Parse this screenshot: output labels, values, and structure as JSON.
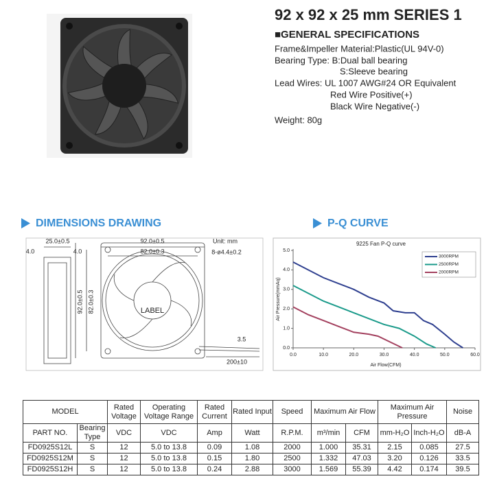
{
  "header": {
    "title": "92 x 92 x 25 mm SERIES 1"
  },
  "specs": {
    "heading": "■GENERAL SPECIFICATIONS",
    "lines": [
      "Frame&Impeller Material:Plastic(UL 94V-0)",
      "Bearing Type:  B:Dual ball bearing",
      "S:Sleeve bearing",
      "Lead Wires: UL 1007 AWG#24 OR Equivalent",
      "Red Wire Positive(+)",
      "Black Wire Negative(-)",
      "Weight: 80g"
    ]
  },
  "sections": {
    "dimensions": "DIMENSIONS DRAWING",
    "pq": "P-Q CURVE"
  },
  "drawing": {
    "unit": "Unit: mm",
    "depth": "25.0±0.5",
    "rim_left": "4.0",
    "rim_right": "4.0",
    "width": "92.0±0.5",
    "hole_pitch": "82.0±0.3",
    "holes": "8-ø4.4±0.2",
    "height": "92.0±0.5",
    "hole_pitch_v": "82.0±0.3",
    "label": "LABEL",
    "wire_dia": "3.5",
    "wire_len": "200±10"
  },
  "chart_data": {
    "type": "line",
    "title": "9225 Fan P-Q curve",
    "x_label": "Air Flow(CFM)",
    "y_label": "Air Pressure(mmAq)",
    "xlim": [
      0,
      60
    ],
    "xticks": [
      {
        "value": 0,
        "label": "0.0"
      },
      {
        "value": 10,
        "label": "10.0"
      },
      {
        "value": 20,
        "label": "20.0"
      },
      {
        "value": 30,
        "label": "30.0"
      },
      {
        "value": 40,
        "label": "40.0"
      },
      {
        "value": 50,
        "label": "50.0"
      },
      {
        "value": 60,
        "label": "60.0"
      }
    ],
    "ylim": [
      0,
      5
    ],
    "yticks": [
      {
        "value": 0,
        "label": "0.0"
      },
      {
        "value": 1,
        "label": "1.0"
      },
      {
        "value": 2,
        "label": "2.0"
      },
      {
        "value": 3,
        "label": "3.0"
      },
      {
        "value": 4,
        "label": "4.0"
      },
      {
        "value": 5,
        "label": "5.0"
      }
    ],
    "legend": "upper right",
    "series": [
      {
        "name": "3000RPM",
        "color": "#2e3f8f",
        "x": [
          0,
          5,
          10,
          15,
          20,
          25,
          30,
          33,
          37,
          40,
          43,
          46,
          50,
          53,
          56
        ],
        "values": [
          4.4,
          4.0,
          3.6,
          3.3,
          3.0,
          2.6,
          2.3,
          1.9,
          1.8,
          1.8,
          1.4,
          1.2,
          0.7,
          0.3,
          0
        ]
      },
      {
        "name": "2500RPM",
        "color": "#1a9a8a",
        "x": [
          0,
          5,
          10,
          15,
          20,
          25,
          30,
          35,
          40,
          44,
          47
        ],
        "values": [
          3.2,
          2.8,
          2.4,
          2.1,
          1.8,
          1.5,
          1.2,
          1.0,
          0.6,
          0.2,
          0
        ]
      },
      {
        "name": "2000RPM",
        "color": "#a3405e",
        "x": [
          0,
          5,
          10,
          15,
          20,
          25,
          28,
          32,
          36
        ],
        "values": [
          2.1,
          1.7,
          1.4,
          1.1,
          0.8,
          0.7,
          0.6,
          0.3,
          0
        ]
      }
    ]
  },
  "table": {
    "header_rows": [
      [
        "MODEL",
        "Rated Voltage",
        "Operating Voltage Range",
        "Rated Current",
        "Rated Input",
        "Speed",
        "Maximum Air Flow",
        "Maximum Air Pressure",
        "Noise"
      ],
      [
        "PART NO.",
        "Bearing Type",
        "VDC",
        "VDC",
        "Amp",
        "Watt",
        "R.P.M.",
        "m³/min",
        "CFM",
        "mm-H₂O",
        "Inch-H₂O",
        "dB-A"
      ]
    ],
    "rows": [
      [
        "FD0925S12L",
        "S",
        "12",
        "5.0 to 13.8",
        "0.09",
        "1.08",
        "2000",
        "1.000",
        "35.31",
        "2.15",
        "0.085",
        "27.5"
      ],
      [
        "FD0925S12M",
        "S",
        "12",
        "5.0 to 13.8",
        "0.15",
        "1.80",
        "2500",
        "1.332",
        "47.03",
        "3.20",
        "0.126",
        "33.5"
      ],
      [
        "FD0925S12H",
        "S",
        "12",
        "5.0 to 13.8",
        "0.24",
        "2.88",
        "3000",
        "1.569",
        "55.39",
        "4.42",
        "0.174",
        "39.5"
      ]
    ]
  }
}
